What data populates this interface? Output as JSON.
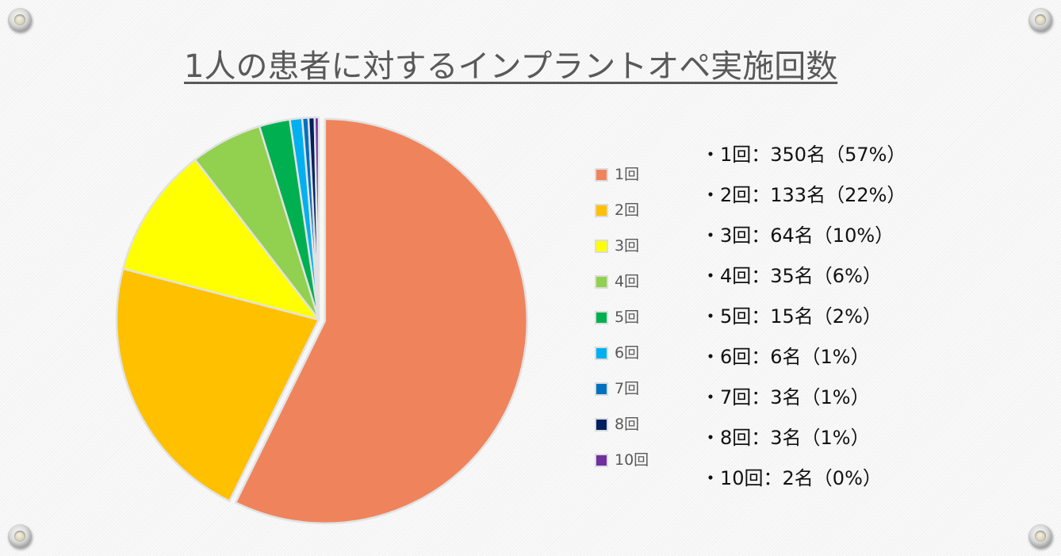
{
  "title": "1人の患者に対するインプラントオペ実施回数",
  "chart_data": {
    "type": "pie",
    "title": "1人の患者に対するインプラントオペ実施回数",
    "categories": [
      "1回",
      "2回",
      "3回",
      "4回",
      "5回",
      "6回",
      "7回",
      "8回",
      "10回"
    ],
    "values": [
      350,
      133,
      64,
      35,
      15,
      6,
      3,
      3,
      2
    ],
    "percentages": [
      57,
      22,
      10,
      6,
      2,
      1,
      1,
      1,
      0
    ],
    "unit": "名",
    "colors": [
      "#EF845C",
      "#FFC000",
      "#FFFF00",
      "#92D050",
      "#00B050",
      "#00B0F0",
      "#0070C0",
      "#002060",
      "#7030A0"
    ],
    "exploded_slice": "1回",
    "start_angle_deg": 0,
    "direction": "clockwise",
    "legend_position": "right",
    "xlabel": "",
    "ylabel": ""
  },
  "legend": {
    "items": [
      {
        "label": "1回",
        "color": "#EF845C"
      },
      {
        "label": "2回",
        "color": "#FFC000"
      },
      {
        "label": "3回",
        "color": "#FFFF00"
      },
      {
        "label": "4回",
        "color": "#92D050"
      },
      {
        "label": "5回",
        "color": "#00B050"
      },
      {
        "label": "6回",
        "color": "#00B0F0"
      },
      {
        "label": "7回",
        "color": "#0070C0"
      },
      {
        "label": "8回",
        "color": "#002060"
      },
      {
        "label": "10回",
        "color": "#7030A0"
      }
    ]
  },
  "stats": {
    "lines": [
      "・1回：350名（57%）",
      "・2回：133名（22%）",
      "・3回：64名（10%）",
      "・4回：35名（6%）",
      "・5回：15名（2%）",
      "・6回：6名（1%）",
      "・7回：3名（1%）",
      "・8回：3名（1%）",
      "・10回：2名（0%）"
    ]
  }
}
